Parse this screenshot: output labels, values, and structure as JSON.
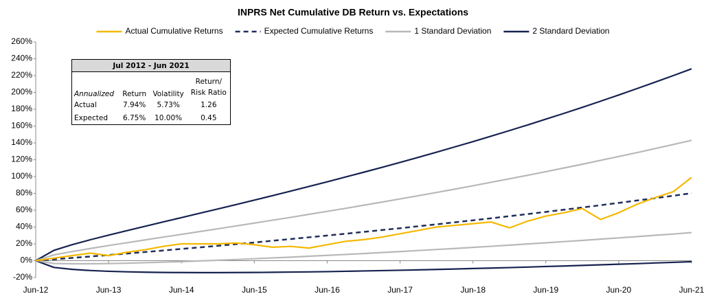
{
  "chart_data": {
    "type": "line",
    "title": "INPRS Net Cumulative DB Return vs. Expectations",
    "categories": [
      "Jun-12",
      null,
      null,
      null,
      "Jun-13",
      null,
      null,
      null,
      "Jun-14",
      null,
      null,
      null,
      "Jun-15",
      null,
      null,
      null,
      "Jun-16",
      null,
      null,
      null,
      "Jun-17",
      null,
      null,
      null,
      "Jun-18",
      null,
      null,
      null,
      "Jun-19",
      null,
      null,
      null,
      "Jun-20",
      null,
      null,
      null,
      "Jun-21"
    ],
    "series": [
      {
        "name": "Actual Cumulative Returns",
        "color": "#f5b800",
        "line_style": "solid",
        "values": [
          0,
          3,
          6,
          9,
          6,
          10,
          13,
          17,
          20,
          20,
          20,
          21,
          19,
          16,
          17,
          15,
          19,
          23,
          25,
          28,
          32,
          36,
          40,
          42,
          44,
          46,
          39,
          47,
          53,
          57,
          62,
          49,
          57,
          67,
          75,
          82,
          99
        ]
      },
      {
        "name": "Expected Cumulative Returns",
        "color": "#1f2d5a",
        "line_style": "dashed",
        "values": [
          0,
          1.6,
          3.3,
          5.0,
          6.75,
          8.5,
          10.3,
          12.1,
          14.0,
          15.8,
          17.7,
          19.7,
          21.6,
          23.7,
          25.7,
          27.8,
          29.9,
          32.0,
          34.2,
          36.4,
          38.6,
          40.9,
          43.2,
          45.6,
          48.0,
          50.4,
          52.9,
          55.4,
          58.0,
          60.6,
          63.2,
          65.9,
          68.7,
          71.5,
          74.3,
          77.2,
          80.2
        ]
      },
      {
        "name": "1 Standard Deviation",
        "color": "#b8b8b8",
        "line_style": "solid",
        "values": [
          0,
          6.9,
          10.9,
          14.5,
          18.0,
          21.3,
          24.7,
          28.0,
          31.3,
          34.6,
          37.9,
          41.3,
          44.7,
          48.1,
          51.5,
          55.1,
          58.6,
          62.2,
          65.9,
          69.6,
          73.4,
          77.2,
          81.1,
          85.0,
          89.0,
          93.2,
          97.3,
          101.5,
          105.8,
          110.2,
          114.6,
          119.2,
          123.8,
          128.4,
          133.2,
          138.1,
          143.0
        ],
        "lower": [
          0,
          -3.3,
          -3.7,
          -3.7,
          -3.4,
          -3.0,
          -2.4,
          -1.8,
          -1.1,
          -0.3,
          0.5,
          1.4,
          2.3,
          3.3,
          4.2,
          5.3,
          6.3,
          7.4,
          8.5,
          9.7,
          10.8,
          12.1,
          13.3,
          14.5,
          15.8,
          17.1,
          18.5,
          19.9,
          21.2,
          22.7,
          24.1,
          25.6,
          27.1,
          28.6,
          30.2,
          31.7,
          33.4
        ]
      },
      {
        "name": "2 Standard Deviation",
        "color": "#15224f",
        "line_style": "solid",
        "values": [
          0,
          12.3,
          19.0,
          24.9,
          30.4,
          35.7,
          40.9,
          46.1,
          51.2,
          56.4,
          61.5,
          66.7,
          72.0,
          77.3,
          82.7,
          88.2,
          93.7,
          99.4,
          105.1,
          110.9,
          116.8,
          122.8,
          128.9,
          135.2,
          141.5,
          148.0,
          154.6,
          161.3,
          168.2,
          175.1,
          182.2,
          189.5,
          196.9,
          204.5,
          212.2,
          220.0,
          228.0
        ],
        "lower": [
          0,
          -8.0,
          -10.3,
          -11.7,
          -12.6,
          -13.2,
          -13.7,
          -14.0,
          -14.1,
          -14.2,
          -14.2,
          -14.1,
          -14.0,
          -13.8,
          -13.5,
          -13.3,
          -13.0,
          -12.6,
          -12.2,
          -11.8,
          -11.4,
          -10.9,
          -10.4,
          -9.9,
          -9.3,
          -8.8,
          -8.2,
          -7.6,
          -6.9,
          -6.3,
          -5.6,
          -4.9,
          -4.2,
          -3.5,
          -2.7,
          -2.0,
          -1.2
        ]
      }
    ],
    "ylim": [
      -20,
      260
    ],
    "yticks": [
      {
        "value": -20,
        "label": "-20%"
      },
      {
        "value": 0,
        "label": "0%"
      },
      {
        "value": 20,
        "label": "20%"
      },
      {
        "value": 40,
        "label": "40%"
      },
      {
        "value": 60,
        "label": "60%"
      },
      {
        "value": 80,
        "label": "80%"
      },
      {
        "value": 100,
        "label": "100%"
      },
      {
        "value": 120,
        "label": "120%"
      },
      {
        "value": 140,
        "label": "140%"
      },
      {
        "value": 160,
        "label": "160%"
      },
      {
        "value": 180,
        "label": "180%"
      },
      {
        "value": 200,
        "label": "200%"
      },
      {
        "value": 220,
        "label": "220%"
      },
      {
        "value": 240,
        "label": "240%"
      },
      {
        "value": 260,
        "label": "260%"
      }
    ],
    "grid": false,
    "legend": "top"
  },
  "table": {
    "title": "Jul 2012 - Jun 2021",
    "header": [
      "Annualized",
      "Return",
      "Volatility",
      [
        "Return/",
        "Risk Ratio"
      ]
    ],
    "rows": [
      [
        "Actual",
        "7.94%",
        "5.73%",
        "1.26"
      ],
      [
        "Expected",
        "6.75%",
        "10.00%",
        "0.45"
      ]
    ]
  }
}
